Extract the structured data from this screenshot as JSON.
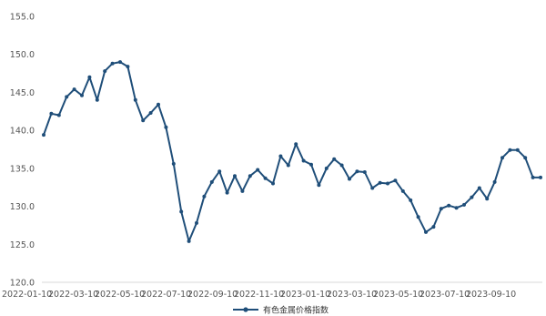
{
  "chart_data": {
    "type": "line",
    "title": "",
    "xlabel": "",
    "ylabel": "",
    "ylim": [
      120.0,
      155.0
    ],
    "yticks": [
      "155.0",
      "150.0",
      "145.0",
      "140.0",
      "135.0",
      "130.0",
      "125.0",
      "120.0"
    ],
    "ytick_values": [
      155,
      150,
      145,
      140,
      135,
      130,
      125,
      120
    ],
    "grid": false,
    "legend_position": "bottom",
    "line_color": "#1f4e79",
    "x_tick_labels": [
      "2022-01-10",
      "2022-03-10",
      "2022-05-10",
      "2022-07-10",
      "2022-09-10",
      "2022-11-10",
      "2023-01-10",
      "2023-03-10",
      "2023-05-10",
      "2023-07-10",
      "2023-09-10"
    ],
    "series": [
      {
        "name": "有色金属价格指数",
        "values": [
          139.4,
          142.2,
          142.0,
          144.4,
          145.4,
          144.6,
          147.0,
          144.0,
          147.8,
          148.8,
          149.0,
          148.4,
          144.0,
          141.3,
          142.3,
          143.4,
          140.4,
          135.6,
          129.3,
          125.4,
          127.8,
          131.3,
          133.2,
          134.6,
          131.8,
          134.0,
          132.0,
          134.0,
          134.8,
          133.7,
          133.0,
          136.6,
          135.4,
          138.2,
          136.0,
          135.5,
          132.8,
          135.0,
          136.2,
          135.4,
          133.6,
          134.6,
          134.5,
          132.4,
          133.1,
          133.0,
          133.4,
          132.0,
          130.8,
          128.6,
          126.6,
          127.3,
          129.7,
          130.1,
          129.8,
          130.2,
          131.2,
          132.4,
          131.0,
          133.2,
          136.4,
          137.4,
          137.4,
          136.4,
          133.8,
          133.8
        ]
      }
    ]
  }
}
